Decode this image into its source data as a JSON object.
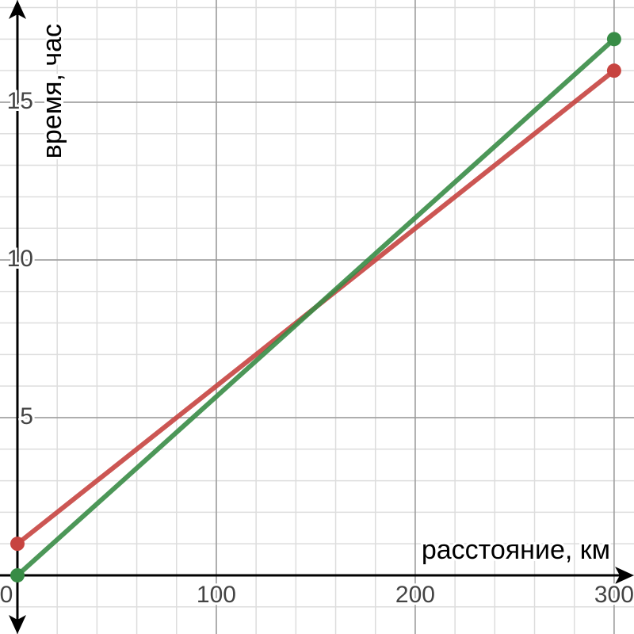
{
  "chart_data": {
    "type": "line",
    "xlabel": "расстояние, км",
    "ylabel": "время, час",
    "x": [
      0,
      300
    ],
    "series": [
      {
        "color": "#c74440",
        "values": [
          1,
          16
        ]
      },
      {
        "color": "#388c46",
        "values": [
          0,
          17
        ]
      }
    ],
    "xlim": [
      -8.76,
      310
    ],
    "ylim": [
      -1.86,
      18.24
    ],
    "xticks": [
      0,
      100,
      200,
      300
    ],
    "yticks": [
      5,
      10,
      15
    ],
    "grid": true
  }
}
